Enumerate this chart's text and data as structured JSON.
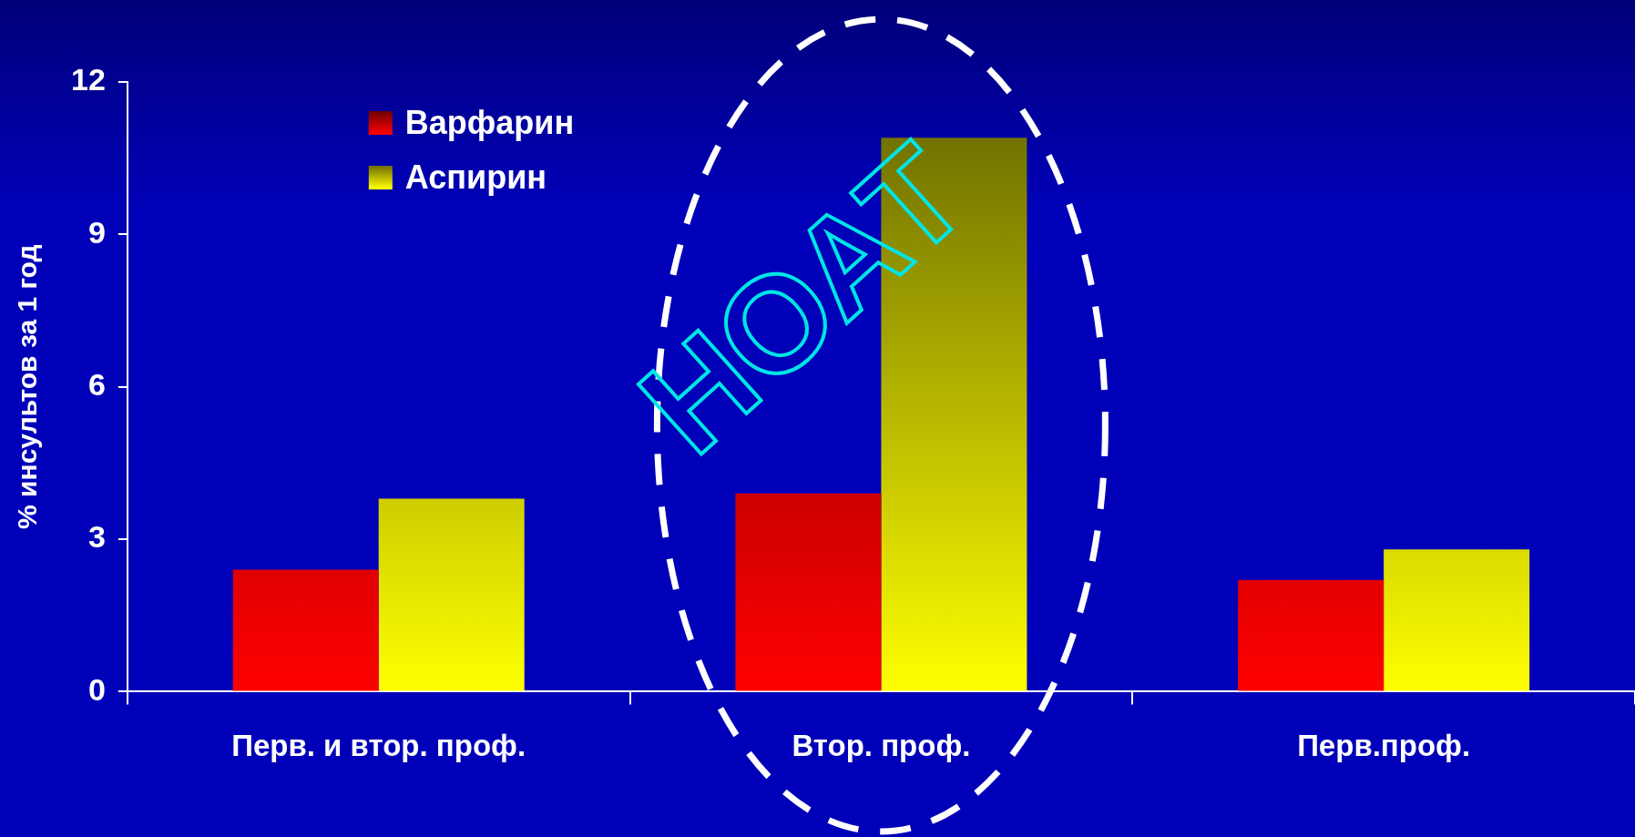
{
  "chart_data": {
    "type": "bar",
    "ylabel": "% инсультов за 1 год",
    "categories": [
      "Перв. и втор. проф.",
      "Втор. проф.",
      "Перв.проф."
    ],
    "series": [
      {
        "name": "Варфарин",
        "color": "#ff0000",
        "values": [
          2.4,
          3.9,
          2.2
        ]
      },
      {
        "name": "Аспирин",
        "color": "#ffff00",
        "values": [
          3.8,
          10.9,
          2.8
        ]
      }
    ],
    "ylim": [
      0,
      12
    ],
    "yticks": [
      0,
      3,
      6,
      9,
      12
    ],
    "grid": false,
    "legend": "top left",
    "annotations": [
      {
        "text": "НОАТ",
        "x": "Втор. проф.",
        "y": 7
      }
    ]
  }
}
